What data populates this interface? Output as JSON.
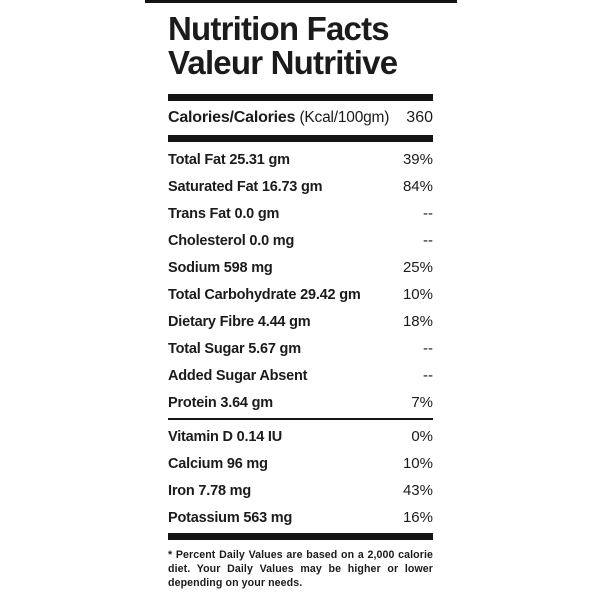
{
  "title": {
    "line1": "Nutrition Facts",
    "line2": "Valeur Nutritive"
  },
  "calories": {
    "label": "Calories/Calories",
    "unit": "(Kcal/100gm)",
    "value": "360"
  },
  "nutrients": [
    {
      "label": "Total Fat 25.31 gm",
      "dv": "39%"
    },
    {
      "label": "Saturated Fat 16.73 gm",
      "dv": "84%"
    },
    {
      "label": "Trans Fat 0.0 gm",
      "dv": "--"
    },
    {
      "label": "Cholesterol 0.0 mg",
      "dv": "--"
    },
    {
      "label": "Sodium 598 mg",
      "dv": "25%"
    },
    {
      "label": "Total Carbohydrate 29.42 gm",
      "dv": "10%"
    },
    {
      "label": "Dietary Fibre 4.44 gm",
      "dv": "18%"
    },
    {
      "label": "Total Sugar 5.67 gm",
      "dv": "--"
    },
    {
      "label": "Added Sugar Absent",
      "dv": "--"
    },
    {
      "label": "Protein 3.64 gm",
      "dv": "7%"
    }
  ],
  "vitamins": [
    {
      "label": "Vitamin D 0.14 IU",
      "dv": "0%"
    },
    {
      "label": "Calcium 96 mg",
      "dv": "10%"
    },
    {
      "label": "Iron 7.78 mg",
      "dv": "43%"
    },
    {
      "label": "Potassium 563 mg",
      "dv": "16%"
    }
  ],
  "footnote": "* Percent Daily Values are based on a 2,000 calorie diet. Your Daily Values may be higher or lower depending on your needs.",
  "colors": {
    "text": "#1b1b1b",
    "bar": "#141414",
    "background": "#ffffff"
  }
}
